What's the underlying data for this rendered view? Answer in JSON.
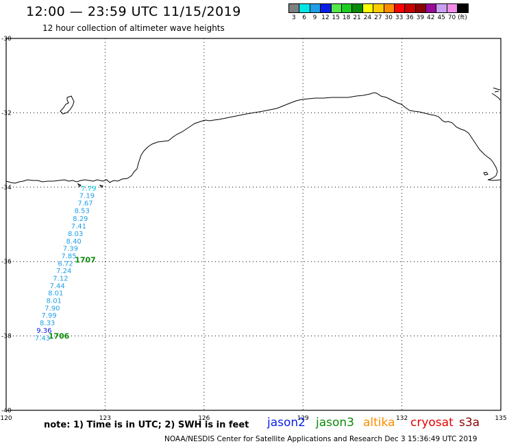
{
  "header": {
    "title": "12:00 — 23:59 UTC 11/15/2019",
    "subtitle": "12 hour collection of altimeter wave heights"
  },
  "legend": {
    "labels": [
      "3",
      "6",
      "9",
      "12",
      "15",
      "18",
      "21",
      "24",
      "27",
      "30",
      "33",
      "36",
      "39",
      "42",
      "45",
      "70",
      "(ft)"
    ],
    "colors": [
      "#808080",
      "#00e5e5",
      "#1e9fe8",
      "#0a1ee6",
      "#54e84a",
      "#1ecd22",
      "#0a8a0a",
      "#ffff00",
      "#ffcc00",
      "#ff8c00",
      "#ff0000",
      "#c80000",
      "#8b0000",
      "#9a0a9a",
      "#c8a0f0",
      "#f08ce6",
      "#000000"
    ]
  },
  "axes": {
    "lat_labels": [
      "-30",
      "-32",
      "-34",
      "-36",
      "-38",
      "-40"
    ],
    "lon_labels": [
      "120",
      "123",
      "126",
      "129",
      "132",
      "135"
    ]
  },
  "observations": [
    {
      "value": "7.79",
      "lon": 122.5,
      "lat": -34.02,
      "color": "#00cde6"
    },
    {
      "value": "7.19",
      "lon": 122.45,
      "lat": -34.22,
      "color": "#1e9fe8"
    },
    {
      "value": "7.67",
      "lon": 122.4,
      "lat": -34.42,
      "color": "#1e9fe8"
    },
    {
      "value": "8.53",
      "lon": 122.3,
      "lat": -34.62,
      "color": "#1e9fe8"
    },
    {
      "value": "8.29",
      "lon": 122.25,
      "lat": -34.83,
      "color": "#1e9fe8"
    },
    {
      "value": "7.41",
      "lon": 122.2,
      "lat": -35.04,
      "color": "#1e9fe8"
    },
    {
      "value": "8.03",
      "lon": 122.1,
      "lat": -35.24,
      "color": "#1e9fe8"
    },
    {
      "value": "8.40",
      "lon": 122.05,
      "lat": -35.44,
      "color": "#1e9fe8"
    },
    {
      "value": "7.39",
      "lon": 121.95,
      "lat": -35.64,
      "color": "#1e9fe8"
    },
    {
      "value": "7.85",
      "lon": 121.9,
      "lat": -35.84,
      "color": "#1e9fe8"
    },
    {
      "value": "6.72",
      "lon": 121.8,
      "lat": -36.04,
      "color": "#1e9fe8"
    },
    {
      "value": "7.24",
      "lon": 121.75,
      "lat": -36.24,
      "color": "#1e9fe8"
    },
    {
      "value": "7.12",
      "lon": 121.65,
      "lat": -36.44,
      "color": "#1e9fe8"
    },
    {
      "value": "7.44",
      "lon": 121.55,
      "lat": -36.64,
      "color": "#1e9fe8"
    },
    {
      "value": "8.01",
      "lon": 121.5,
      "lat": -36.84,
      "color": "#1e9fe8"
    },
    {
      "value": "8.01",
      "lon": 121.45,
      "lat": -37.04,
      "color": "#1e9fe8"
    },
    {
      "value": "7.90",
      "lon": 121.4,
      "lat": -37.24,
      "color": "#1e9fe8"
    },
    {
      "value": "7.99",
      "lon": 121.3,
      "lat": -37.44,
      "color": "#1e9fe8"
    },
    {
      "value": "8.33",
      "lon": 121.25,
      "lat": -37.64,
      "color": "#1e9fe8"
    },
    {
      "value": "9.36",
      "lon": 121.15,
      "lat": -37.84,
      "color": "#0a1ee6"
    },
    {
      "value": "7.43",
      "lon": 121.1,
      "lat": -38.04,
      "color": "#1e9fe8"
    }
  ],
  "time_labels": [
    {
      "text": "1707",
      "lon": 122.4,
      "lat": -35.95,
      "color": "#0a8a0a"
    },
    {
      "text": "1706",
      "lon": 121.6,
      "lat": -38.0,
      "color": "#0a8a0a"
    }
  ],
  "footer": {
    "note": "note: 1) Time is in UTC; 2) SWH is in feet",
    "credit": "NOAA/NESDIS Center for Satellite Applications and Research     Dec  3 15:36:49 UTC 2019",
    "satellites": [
      {
        "name": "jason2",
        "color": "#0a1ee6"
      },
      {
        "name": "jason3",
        "color": "#0a8a0a"
      },
      {
        "name": "altika",
        "color": "#ff8c00"
      },
      {
        "name": "cryosat",
        "color": "#e60000"
      },
      {
        "name": "s3a",
        "color": "#8b0000"
      }
    ]
  }
}
